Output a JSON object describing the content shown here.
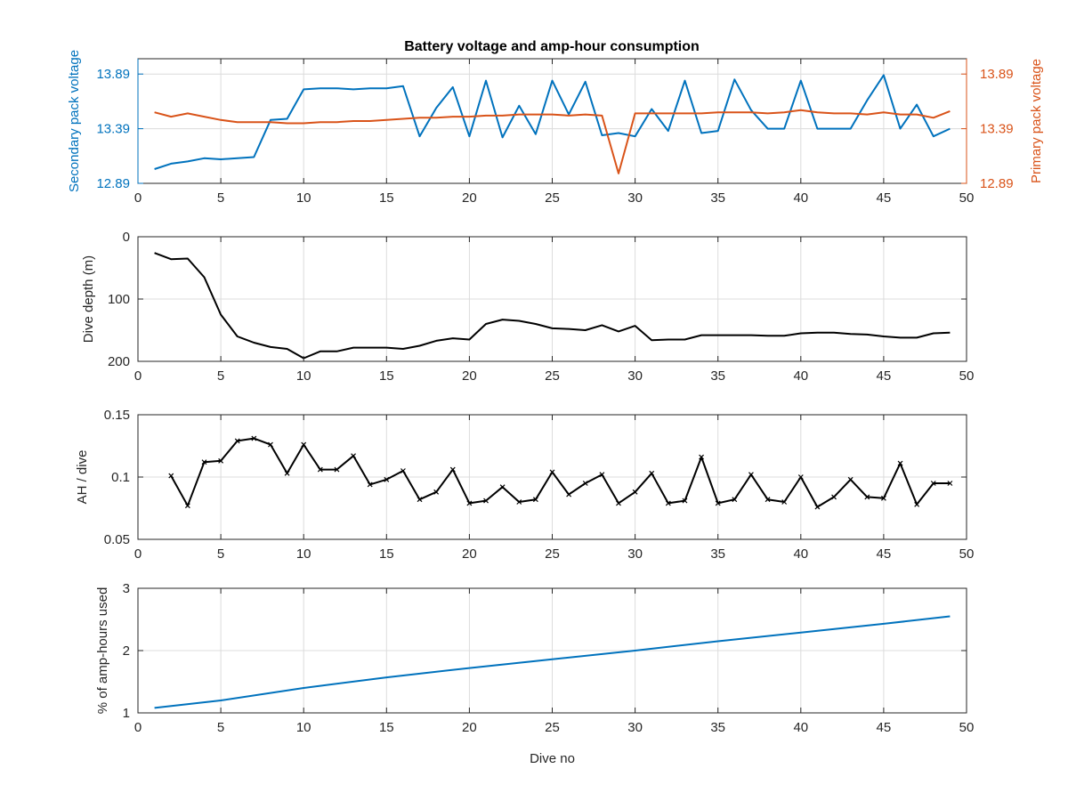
{
  "figure": {
    "title": "Battery voltage and amp-hour consumption"
  },
  "colors": {
    "secondary": "#0072BD",
    "primary": "#D95319",
    "black": "#000000",
    "grid": "#dcdcdc"
  },
  "chart_data": [
    {
      "type": "line",
      "title": "Battery voltage and amp-hour consumption",
      "xlabel": "",
      "ylabel": "Secondary pack voltage",
      "ylabel_right": "Primary pack voltage",
      "xlim": [
        0,
        50
      ],
      "ylim": [
        12.89,
        14.03
      ],
      "ylim_right": [
        12.89,
        14.03
      ],
      "xticks": [
        0,
        5,
        10,
        15,
        20,
        25,
        30,
        35,
        40,
        45,
        50
      ],
      "yticks": [
        12.89,
        13.39,
        13.89
      ],
      "yticks_right": [
        12.89,
        13.39,
        13.89
      ],
      "grid": true,
      "series": [
        {
          "axis": "left",
          "color": "#0072BD",
          "x": [
            1,
            2,
            3,
            4,
            5,
            6,
            7,
            8,
            9,
            10,
            11,
            12,
            13,
            14,
            15,
            16,
            17,
            18,
            19,
            20,
            21,
            22,
            23,
            24,
            25,
            26,
            27,
            28,
            29,
            30,
            31,
            32,
            33,
            34,
            35,
            36,
            37,
            38,
            39,
            40,
            41,
            42,
            43,
            44,
            45,
            46,
            47,
            48,
            49
          ],
          "values": [
            13.02,
            13.07,
            13.09,
            13.12,
            13.11,
            13.12,
            13.13,
            13.47,
            13.48,
            13.75,
            13.76,
            13.76,
            13.75,
            13.76,
            13.76,
            13.78,
            13.32,
            13.58,
            13.77,
            13.32,
            13.83,
            13.31,
            13.6,
            13.34,
            13.83,
            13.52,
            13.82,
            13.33,
            13.35,
            13.32,
            13.57,
            13.37,
            13.83,
            13.35,
            13.37,
            13.84,
            13.56,
            13.39,
            13.39,
            13.83,
            13.39,
            13.39,
            13.39,
            13.65,
            13.88,
            13.39,
            13.61,
            13.32,
            13.39
          ]
        },
        {
          "axis": "right",
          "color": "#D95319",
          "x": [
            1,
            2,
            3,
            4,
            5,
            6,
            7,
            8,
            9,
            10,
            11,
            12,
            13,
            14,
            15,
            16,
            17,
            18,
            19,
            20,
            21,
            22,
            23,
            24,
            25,
            26,
            27,
            28,
            29,
            30,
            31,
            32,
            33,
            34,
            35,
            36,
            37,
            38,
            39,
            40,
            41,
            42,
            43,
            44,
            45,
            46,
            47,
            48,
            49
          ],
          "values": [
            13.54,
            13.5,
            13.53,
            13.5,
            13.47,
            13.45,
            13.45,
            13.45,
            13.44,
            13.44,
            13.45,
            13.45,
            13.46,
            13.46,
            13.47,
            13.48,
            13.49,
            13.49,
            13.5,
            13.5,
            13.51,
            13.51,
            13.52,
            13.52,
            13.52,
            13.51,
            13.52,
            13.51,
            12.98,
            13.53,
            13.53,
            13.53,
            13.53,
            13.53,
            13.54,
            13.54,
            13.54,
            13.53,
            13.54,
            13.56,
            13.54,
            13.53,
            13.53,
            13.52,
            13.54,
            13.52,
            13.52,
            13.49,
            13.55
          ]
        }
      ]
    },
    {
      "type": "line",
      "xlabel": "",
      "ylabel": "Dive depth (m)",
      "xlim": [
        0,
        50
      ],
      "ylim": [
        0,
        200
      ],
      "y_reversed": true,
      "xticks": [
        0,
        5,
        10,
        15,
        20,
        25,
        30,
        35,
        40,
        45,
        50
      ],
      "yticks": [
        0,
        100,
        200
      ],
      "grid": true,
      "series": [
        {
          "color": "#000000",
          "x": [
            1,
            2,
            3,
            4,
            5,
            6,
            7,
            8,
            9,
            10,
            11,
            12,
            13,
            14,
            15,
            16,
            17,
            18,
            19,
            20,
            21,
            22,
            23,
            24,
            25,
            26,
            27,
            28,
            29,
            30,
            31,
            32,
            33,
            34,
            35,
            36,
            37,
            38,
            39,
            40,
            41,
            42,
            43,
            44,
            45,
            46,
            47,
            48,
            49
          ],
          "values": [
            26,
            36,
            35,
            65,
            125,
            160,
            170,
            177,
            180,
            195,
            184,
            184,
            178,
            178,
            178,
            180,
            175,
            167,
            163,
            165,
            140,
            133,
            135,
            140,
            147,
            148,
            150,
            142,
            152,
            143,
            166,
            165,
            165,
            158,
            158,
            158,
            158,
            159,
            159,
            155,
            154,
            154,
            156,
            157,
            160,
            162,
            162,
            155,
            154
          ]
        }
      ]
    },
    {
      "type": "line",
      "xlabel": "",
      "ylabel": "AH / dive",
      "xlim": [
        0,
        50
      ],
      "ylim": [
        0.05,
        0.15
      ],
      "xticks": [
        0,
        5,
        10,
        15,
        20,
        25,
        30,
        35,
        40,
        45,
        50
      ],
      "yticks": [
        0.05,
        0.1,
        0.15
      ],
      "grid": true,
      "series": [
        {
          "color": "#000000",
          "marker": "x",
          "x": [
            2,
            3,
            4,
            5,
            6,
            7,
            8,
            9,
            10,
            11,
            12,
            13,
            14,
            15,
            16,
            17,
            18,
            19,
            20,
            21,
            22,
            23,
            24,
            25,
            26,
            27,
            28,
            29,
            30,
            31,
            32,
            33,
            34,
            35,
            36,
            37,
            38,
            39,
            40,
            41,
            42,
            43,
            44,
            45,
            46,
            47,
            48,
            49
          ],
          "values": [
            0.101,
            0.077,
            0.112,
            0.113,
            0.129,
            0.131,
            0.126,
            0.103,
            0.126,
            0.106,
            0.106,
            0.117,
            0.094,
            0.098,
            0.105,
            0.082,
            0.088,
            0.106,
            0.079,
            0.081,
            0.092,
            0.08,
            0.082,
            0.104,
            0.086,
            0.095,
            0.102,
            0.079,
            0.088,
            0.103,
            0.079,
            0.081,
            0.116,
            0.079,
            0.082,
            0.102,
            0.082,
            0.08,
            0.1,
            0.076,
            0.084,
            0.098,
            0.084,
            0.083,
            0.111,
            0.078,
            0.095,
            0.095
          ]
        }
      ]
    },
    {
      "type": "line",
      "xlabel": "Dive no",
      "ylabel": "% of amp-hours used",
      "xlim": [
        0,
        50
      ],
      "ylim": [
        1,
        3
      ],
      "xticks": [
        0,
        5,
        10,
        15,
        20,
        25,
        30,
        35,
        40,
        45,
        50
      ],
      "yticks": [
        1,
        2,
        3
      ],
      "grid": true,
      "series": [
        {
          "color": "#0072BD",
          "x": [
            1,
            5,
            10,
            15,
            20,
            25,
            30,
            35,
            40,
            45,
            49
          ],
          "values": [
            1.08,
            1.2,
            1.4,
            1.57,
            1.72,
            1.86,
            2.0,
            2.15,
            2.29,
            2.43,
            2.55
          ]
        }
      ]
    }
  ]
}
